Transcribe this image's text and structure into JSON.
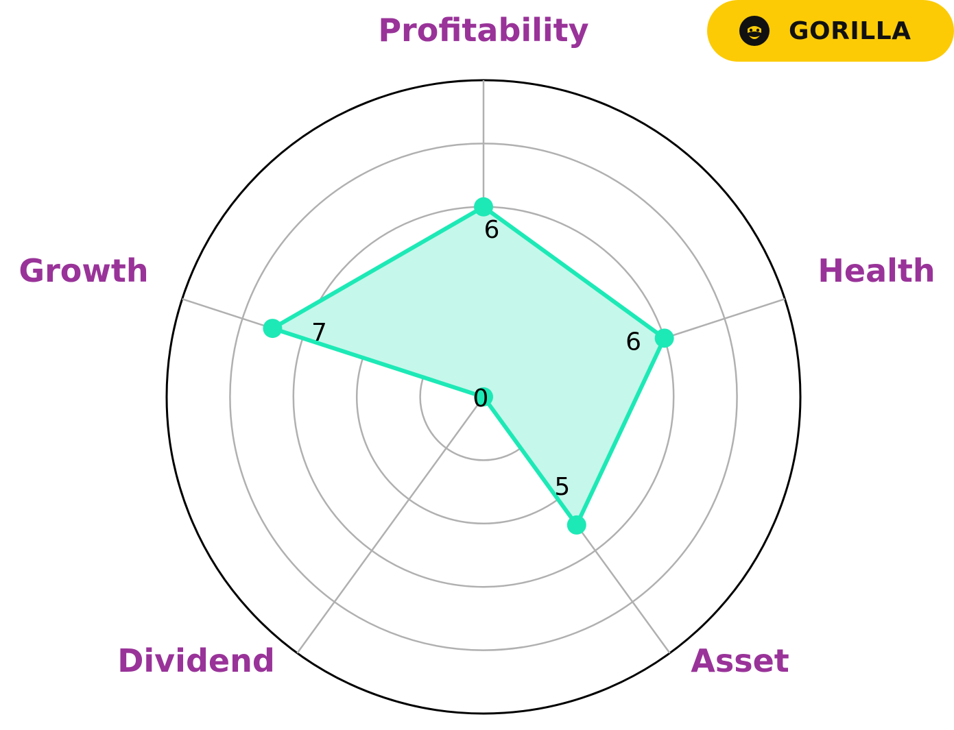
{
  "chart_data": {
    "type": "radar",
    "categories": [
      "Profitability",
      "Health",
      "Asset",
      "Dividend",
      "Growth"
    ],
    "values": [
      6,
      6,
      5,
      0,
      7
    ],
    "rlim": [
      0,
      10
    ],
    "rings": [
      2,
      4,
      6,
      8,
      10
    ],
    "grid": true,
    "legend": "none"
  },
  "colors": {
    "series_line": "#1de9b6",
    "series_fill": "#c5f7ea",
    "axis_label": "#993399",
    "grid": "#b0b0b0",
    "outer_ring": "#000000",
    "badge_bg": "#fccb06"
  },
  "brand": {
    "name": "GORILLA",
    "icon": "gorilla-icon"
  }
}
